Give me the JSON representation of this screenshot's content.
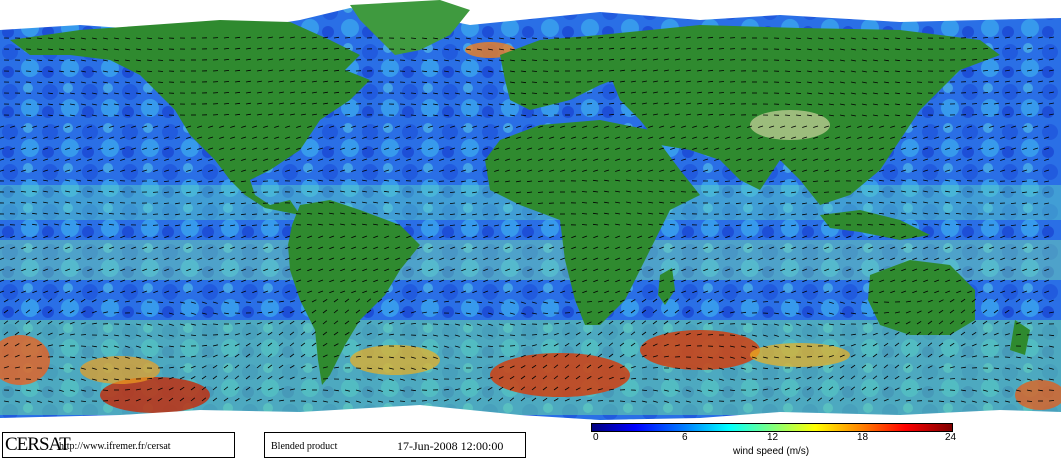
{
  "brand": {
    "logo_text": "CERSAT",
    "url": "http://www.ifremer.fr/cersat"
  },
  "product": {
    "name": "Blended product",
    "datetime": "17-Jun-2008 12:00:00"
  },
  "colorbar": {
    "ticks": [
      "0",
      "6",
      "12",
      "18",
      "24"
    ],
    "label": "wind speed (m/s)",
    "range": [
      0,
      24
    ],
    "colors": [
      "#00007f",
      "#0000ff",
      "#0080ff",
      "#00ffff",
      "#7fff7f",
      "#ffff00",
      "#ff8000",
      "#ff0000",
      "#7f0000"
    ]
  },
  "map": {
    "ocean_color": "#2a7fe8",
    "land_color": "#2f8a2f",
    "ice_color": "#ffffff",
    "arrow_color": "#000000"
  }
}
